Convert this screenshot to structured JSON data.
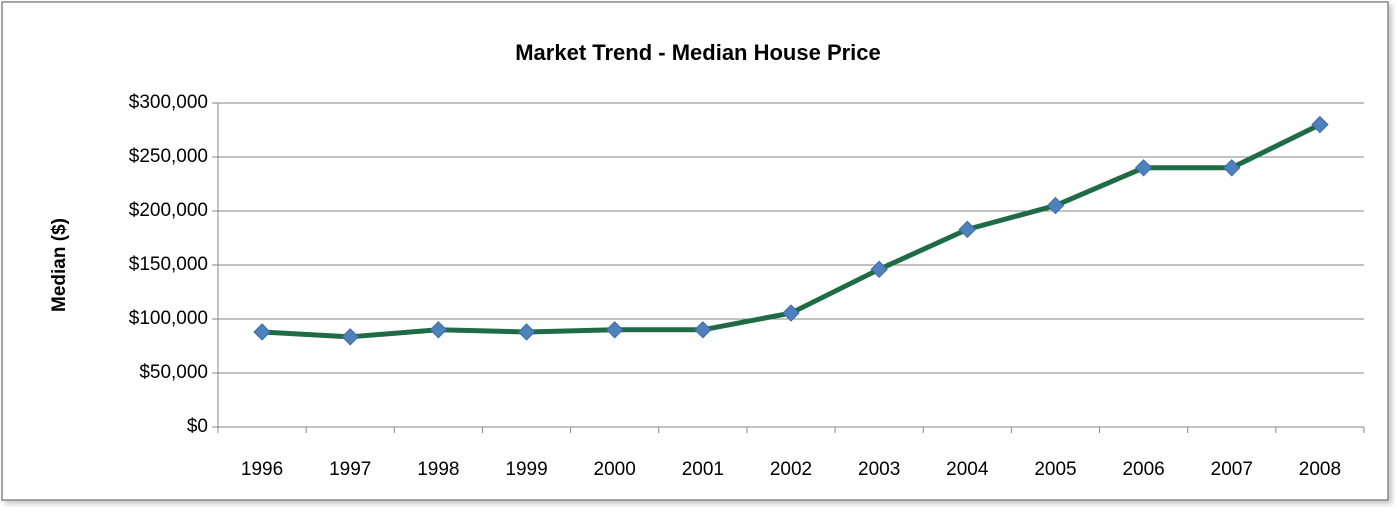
{
  "chart_data": {
    "type": "line",
    "title": "Market Trend - Median  House Price",
    "y_label": "Median ($)",
    "categories": [
      "1996",
      "1997",
      "1998",
      "1999",
      "2000",
      "2001",
      "2002",
      "2003",
      "2004",
      "2005",
      "2006",
      "2007",
      "2008"
    ],
    "series": [
      {
        "name": "Median",
        "color": "#1e6b45",
        "marker_color": "#4f81bd",
        "values": [
          88000,
          83500,
          90000,
          88000,
          90000,
          90000,
          105500,
          146000,
          183000,
          205000,
          240000,
          240000,
          280000
        ]
      }
    ],
    "ylim": [
      0,
      300000
    ],
    "yticks": [
      {
        "value": 0,
        "label": "$0"
      },
      {
        "value": 50000,
        "label": "$50,000"
      },
      {
        "value": 100000,
        "label": "$100,000"
      },
      {
        "value": 150000,
        "label": "$150,000"
      },
      {
        "value": 200000,
        "label": "$200,000"
      },
      {
        "value": 250000,
        "label": "$250,000"
      },
      {
        "value": 300000,
        "label": "$300,000"
      }
    ],
    "grid": true
  }
}
